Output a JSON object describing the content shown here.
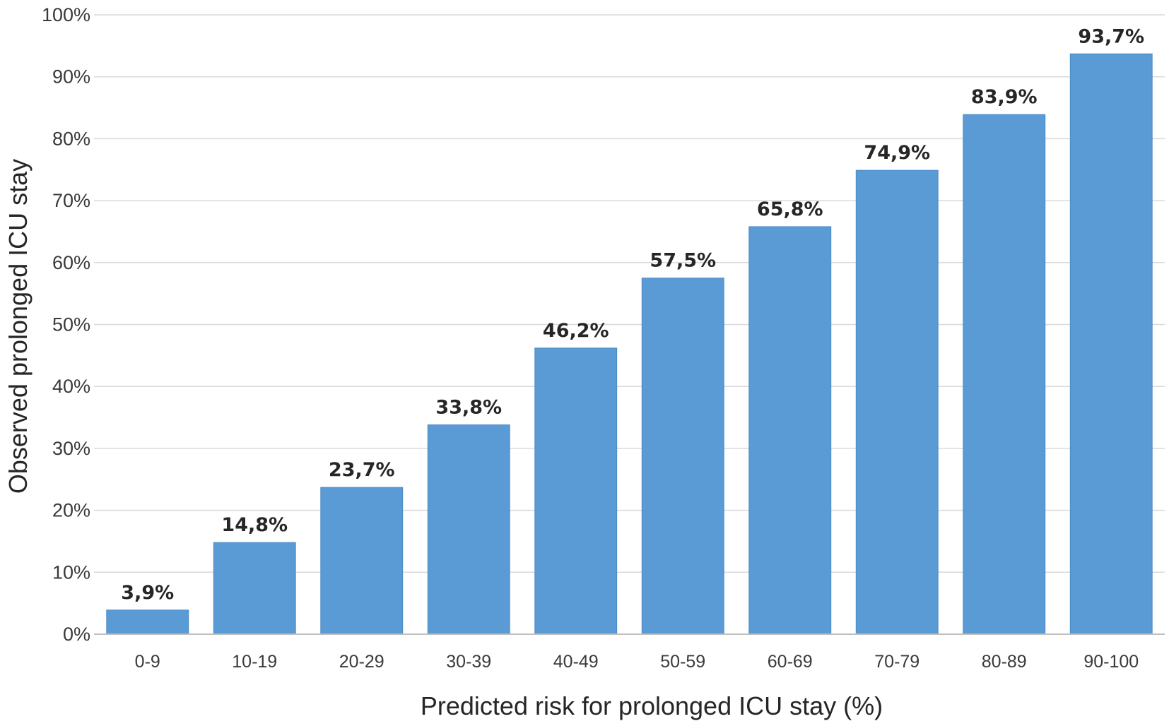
{
  "chart_data": {
    "type": "bar",
    "title": "",
    "xlabel": "Predicted risk for prolonged ICU stay (%)",
    "ylabel": "Observed prolonged ICU stay",
    "categories": [
      "0-9",
      "10-19",
      "20-29",
      "30-39",
      "40-49",
      "50-59",
      "60-69",
      "70-79",
      "80-89",
      "90-100"
    ],
    "values": [
      3.9,
      14.8,
      23.7,
      33.8,
      46.2,
      57.5,
      65.8,
      74.9,
      83.9,
      93.7
    ],
    "data_labels": [
      "3,9%",
      "14,8%",
      "23,7%",
      "33,8%",
      "46,2%",
      "57,5%",
      "65,8%",
      "74,9%",
      "83,9%",
      "93,7%"
    ],
    "yticks": [
      0,
      10,
      20,
      30,
      40,
      50,
      60,
      70,
      80,
      90,
      100
    ],
    "ytick_labels": [
      "0%",
      "10%",
      "20%",
      "30%",
      "40%",
      "50%",
      "60%",
      "70%",
      "80%",
      "90%",
      "100%"
    ],
    "ylim": [
      0,
      100
    ],
    "grid": true,
    "legend": "none",
    "bar_color": "#5b9bd5"
  }
}
